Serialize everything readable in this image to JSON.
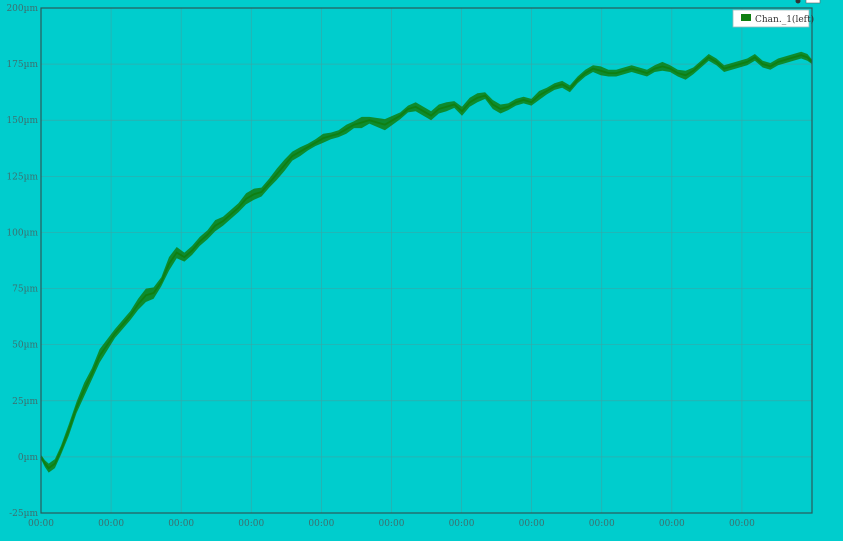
{
  "chart_data": {
    "type": "line",
    "title": "",
    "xlabel": "",
    "ylabel": "",
    "y_unit": "µm",
    "ylim": [
      -25,
      200
    ],
    "y_ticks": [
      -25,
      0,
      25,
      50,
      75,
      100,
      125,
      150,
      175,
      200
    ],
    "y_tick_labels": [
      "-25µm",
      "0µm",
      "25µm",
      "50µm",
      "75µm",
      "100µm",
      "125µm",
      "150µm",
      "175µm",
      "200µm"
    ],
    "x_tick_labels": [
      "00:00",
      "00:00",
      "00:00",
      "00:00",
      "00:00",
      "00:00",
      "00:00",
      "00:00",
      "00:00",
      "00:00",
      "00:00"
    ],
    "xlim": [
      0,
      100
    ],
    "grid": true,
    "legend_position": "top-right",
    "series": [
      {
        "name": "Chan._1(left)",
        "color": "#0F7F12",
        "x": [
          0,
          0.5,
          1,
          1.8,
          2.6,
          3.6,
          4.6,
          5.6,
          6.6,
          7.6,
          8.6,
          9.6,
          10.6,
          11.6,
          12.6,
          13.6,
          14.6,
          15.6,
          16.6,
          17.6,
          18.6,
          19.6,
          20.6,
          21.6,
          22.6,
          23.6,
          24.6,
          25.6,
          26.6,
          27.6,
          28.6,
          29.6,
          30.6,
          31.6,
          32.6,
          33.6,
          34.6,
          35.6,
          36.6,
          37.6,
          38.6,
          39.6,
          40.6,
          41.6,
          42.6,
          43.6,
          44.6,
          45.6,
          46.6,
          47.6,
          48.6,
          49.6,
          50.6,
          51.6,
          52.6,
          53.6,
          54.6,
          55.6,
          56.6,
          57.6,
          58.6,
          59.6,
          60.6,
          61.6,
          62.6,
          63.6,
          64.6,
          65.6,
          66.6,
          67.6,
          68.6,
          69.6,
          70.6,
          71.6,
          72.6,
          73.6,
          74.6,
          75.6,
          76.6,
          77.6,
          78.6,
          79.6,
          80.6,
          81.6,
          82.6,
          83.6,
          84.6,
          85.6,
          86.6,
          87.6,
          88.6,
          89.6,
          90.6,
          91.6,
          92.6,
          93.6,
          94.6,
          95.6,
          96.6,
          97.6,
          98.6,
          99.4,
          100
        ],
        "y": [
          0,
          -3,
          -5,
          -3,
          3,
          12,
          22,
          30,
          37,
          45,
          50,
          55,
          59,
          63,
          68,
          72,
          73,
          78,
          86,
          91,
          89,
          92,
          96,
          99,
          103,
          105,
          108,
          111,
          115,
          117,
          118,
          122,
          126,
          130,
          134,
          136,
          138,
          140,
          142,
          143,
          144,
          146,
          148,
          149,
          150,
          149,
          148,
          150,
          152,
          155,
          156,
          154,
          152,
          155,
          156,
          157,
          154,
          158,
          160,
          161,
          157,
          155,
          156,
          158,
          159,
          158,
          161,
          163,
          165,
          166,
          164,
          168,
          171,
          173,
          172,
          171,
          171,
          172,
          173,
          172,
          171,
          173,
          174,
          173,
          171,
          170,
          172,
          175,
          178,
          176,
          173,
          174,
          175,
          176,
          178,
          175,
          174,
          176,
          177,
          178,
          179,
          178,
          176
        ],
        "band": [
          1,
          1.5,
          2,
          2,
          2,
          2.5,
          2.5,
          3,
          2.5,
          3,
          2.5,
          2,
          2,
          2,
          2.5,
          3,
          2.5,
          2,
          3,
          2.5,
          2,
          2,
          2,
          2,
          2.5,
          2,
          2,
          2,
          2.5,
          2.5,
          2,
          2,
          2.5,
          2.5,
          2,
          2,
          1.5,
          1.5,
          2,
          1.5,
          1.5,
          2,
          1.5,
          2.5,
          1.5,
          2,
          2.5,
          2,
          1.5,
          1.5,
          2,
          2,
          2,
          2,
          2,
          1.5,
          2,
          2,
          2,
          1.5,
          2,
          2,
          1.5,
          1.5,
          1.5,
          1.5,
          2,
          1.5,
          1.5,
          1.5,
          1.5,
          1.5,
          1.5,
          1.5,
          2,
          1.5,
          1.5,
          1.5,
          1.5,
          1.5,
          1.5,
          1.5,
          2,
          1.5,
          1.5,
          2,
          1.5,
          1.5,
          1.5,
          1.5,
          1.5,
          1.5,
          1.5,
          1.5,
          1.5,
          1.5,
          1.5,
          1.5,
          1.5,
          1.5,
          1.5,
          1.5,
          1
        ]
      }
    ]
  }
}
